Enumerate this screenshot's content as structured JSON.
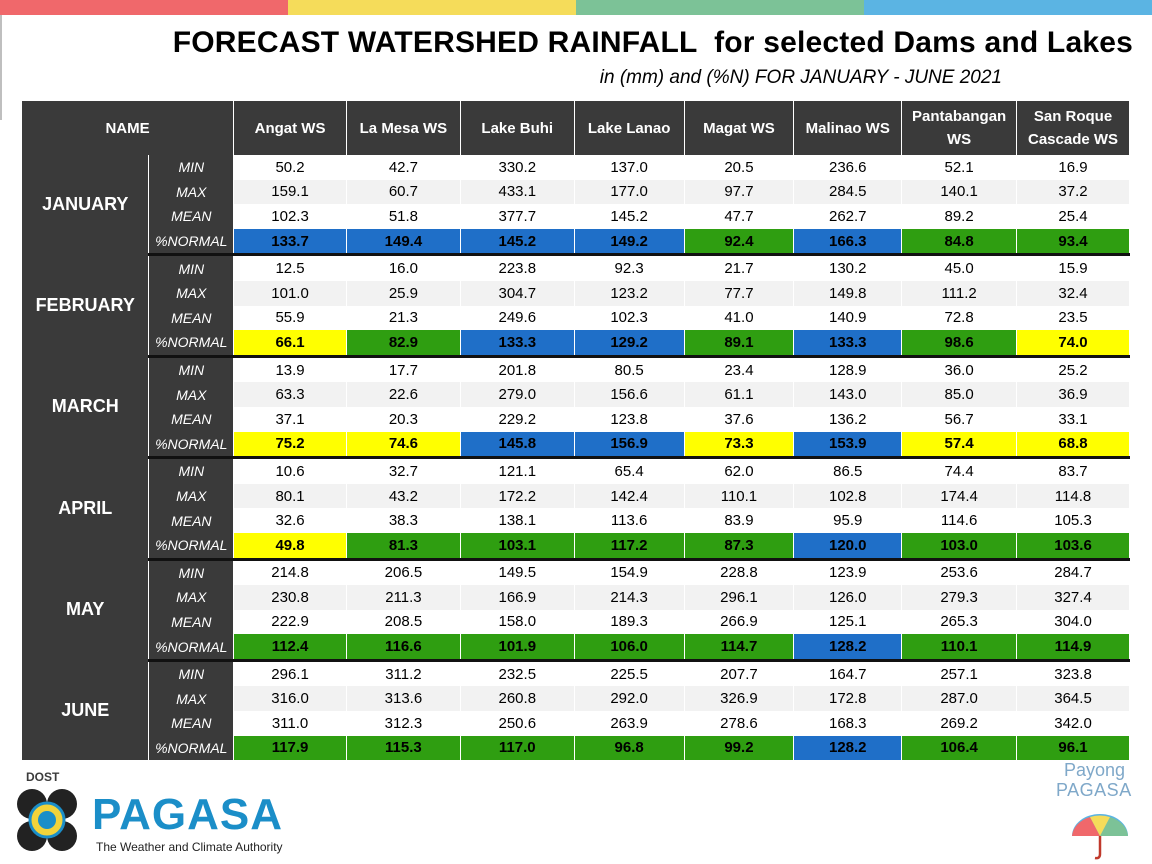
{
  "title": "FORECAST WATERSHED RAINFALL  for selected Dams and Lakes",
  "subtitle": "in (mm) and (%N) FOR JANUARY - JUNE 2021",
  "top_bar_colors": [
    "#f0686b",
    "#f5dc5a",
    "#7cc297",
    "#5bb4e3"
  ],
  "legend_colors": {
    "green": "#2f9e11",
    "blue": "#1f6fc8",
    "yellow": "#ffff00"
  },
  "table": {
    "name_header": "NAME",
    "columns": [
      "Angat WS",
      "La Mesa WS",
      "Lake Buhi",
      "Lake Lanao",
      "Magat WS",
      "Malinao WS",
      "Pantabangan WS",
      "San Roque Cascade WS"
    ],
    "row_labels": [
      "MIN",
      "MAX",
      "MEAN",
      "%NORMAL"
    ],
    "months": [
      {
        "name": "JANUARY",
        "min": [
          "50.2",
          "42.7",
          "330.2",
          "137.0",
          "20.5",
          "236.6",
          "52.1",
          "16.9"
        ],
        "max": [
          "159.1",
          "60.7",
          "433.1",
          "177.0",
          "97.7",
          "284.5",
          "140.1",
          "37.2"
        ],
        "mean": [
          "102.3",
          "51.8",
          "377.7",
          "145.2",
          "47.7",
          "262.7",
          "89.2",
          "25.4"
        ],
        "normal": [
          "133.7",
          "149.4",
          "145.2",
          "149.2",
          "92.4",
          "166.3",
          "84.8",
          "93.4"
        ],
        "normal_colors": [
          "b",
          "b",
          "b",
          "b",
          "g",
          "b",
          "g",
          "g"
        ]
      },
      {
        "name": "FEBRUARY",
        "min": [
          "12.5",
          "16.0",
          "223.8",
          "92.3",
          "21.7",
          "130.2",
          "45.0",
          "15.9"
        ],
        "max": [
          "101.0",
          "25.9",
          "304.7",
          "123.2",
          "77.7",
          "149.8",
          "111.2",
          "32.4"
        ],
        "mean": [
          "55.9",
          "21.3",
          "249.6",
          "102.3",
          "41.0",
          "140.9",
          "72.8",
          "23.5"
        ],
        "normal": [
          "66.1",
          "82.9",
          "133.3",
          "129.2",
          "89.1",
          "133.3",
          "98.6",
          "74.0"
        ],
        "normal_colors": [
          "y",
          "g",
          "b",
          "b",
          "g",
          "b",
          "g",
          "y"
        ]
      },
      {
        "name": "MARCH",
        "min": [
          "13.9",
          "17.7",
          "201.8",
          "80.5",
          "23.4",
          "128.9",
          "36.0",
          "25.2"
        ],
        "max": [
          "63.3",
          "22.6",
          "279.0",
          "156.6",
          "61.1",
          "143.0",
          "85.0",
          "36.9"
        ],
        "mean": [
          "37.1",
          "20.3",
          "229.2",
          "123.8",
          "37.6",
          "136.2",
          "56.7",
          "33.1"
        ],
        "normal": [
          "75.2",
          "74.6",
          "145.8",
          "156.9",
          "73.3",
          "153.9",
          "57.4",
          "68.8"
        ],
        "normal_colors": [
          "y",
          "y",
          "b",
          "b",
          "y",
          "b",
          "y",
          "y"
        ]
      },
      {
        "name": "APRIL",
        "min": [
          "10.6",
          "32.7",
          "121.1",
          "65.4",
          "62.0",
          "86.5",
          "74.4",
          "83.7"
        ],
        "max": [
          "80.1",
          "43.2",
          "172.2",
          "142.4",
          "110.1",
          "102.8",
          "174.4",
          "114.8"
        ],
        "mean": [
          "32.6",
          "38.3",
          "138.1",
          "113.6",
          "83.9",
          "95.9",
          "114.6",
          "105.3"
        ],
        "normal": [
          "49.8",
          "81.3",
          "103.1",
          "117.2",
          "87.3",
          "120.0",
          "103.0",
          "103.6"
        ],
        "normal_colors": [
          "y",
          "g",
          "g",
          "g",
          "g",
          "b",
          "g",
          "g"
        ]
      },
      {
        "name": "MAY",
        "min": [
          "214.8",
          "206.5",
          "149.5",
          "154.9",
          "228.8",
          "123.9",
          "253.6",
          "284.7"
        ],
        "max": [
          "230.8",
          "211.3",
          "166.9",
          "214.3",
          "296.1",
          "126.0",
          "279.3",
          "327.4"
        ],
        "mean": [
          "222.9",
          "208.5",
          "158.0",
          "189.3",
          "266.9",
          "125.1",
          "265.3",
          "304.0"
        ],
        "normal": [
          "112.4",
          "116.6",
          "101.9",
          "106.0",
          "114.7",
          "128.2",
          "110.1",
          "114.9"
        ],
        "normal_colors": [
          "g",
          "g",
          "g",
          "g",
          "g",
          "b",
          "g",
          "g"
        ]
      },
      {
        "name": "JUNE",
        "min": [
          "296.1",
          "311.2",
          "232.5",
          "225.5",
          "207.7",
          "164.7",
          "257.1",
          "323.8"
        ],
        "max": [
          "316.0",
          "313.6",
          "260.8",
          "292.0",
          "326.9",
          "172.8",
          "287.0",
          "364.5"
        ],
        "mean": [
          "311.0",
          "312.3",
          "250.6",
          "263.9",
          "278.6",
          "168.3",
          "269.2",
          "342.0"
        ],
        "normal": [
          "117.9",
          "115.3",
          "117.0",
          "96.8",
          "99.2",
          "128.2",
          "106.4",
          "96.1"
        ],
        "normal_colors": [
          "g",
          "g",
          "g",
          "g",
          "g",
          "b",
          "g",
          "g"
        ]
      }
    ]
  },
  "logos": {
    "dost_label": "DOST",
    "pagasa_word": "PAGASA",
    "pagasa_tagline": "The Weather and Climate Authority",
    "payong_line1": "Payong",
    "payong_line2": "PAGASA"
  }
}
